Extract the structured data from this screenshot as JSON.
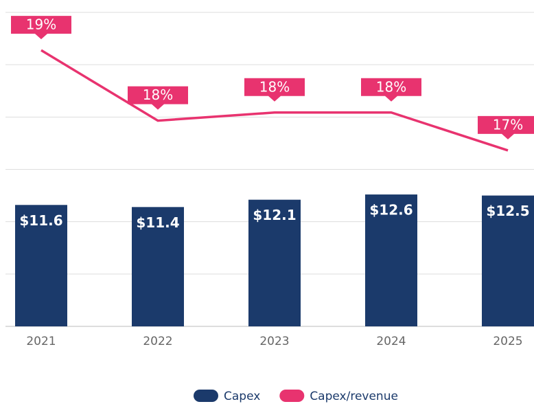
{
  "chart_data": {
    "type": "bar-line",
    "categories": [
      "2021",
      "2022",
      "2023",
      "2024",
      "2025"
    ],
    "series": [
      {
        "name": "Capex",
        "color": "#1b3a6b",
        "type": "bar",
        "values": [
          11.6,
          11.4,
          12.1,
          12.6,
          12.5
        ],
        "value_labels": [
          "$11.6",
          "$11.4",
          "$12.1",
          "$12.6",
          "$12.5"
        ]
      },
      {
        "name": "Capex/revenue",
        "color": "#e8336f",
        "type": "line",
        "axis": "y2",
        "values": [
          19.3,
          18.0,
          18.15,
          18.15,
          17.45
        ],
        "value_labels": [
          "19%",
          "18%",
          "18%",
          "18%",
          "17%"
        ]
      }
    ],
    "ylim": [
      0,
      30
    ],
    "yticks": [
      0,
      5,
      10,
      15,
      20,
      25,
      30
    ],
    "y2lim": [
      14.2,
      20
    ],
    "grid": true,
    "legend": "bottom"
  }
}
